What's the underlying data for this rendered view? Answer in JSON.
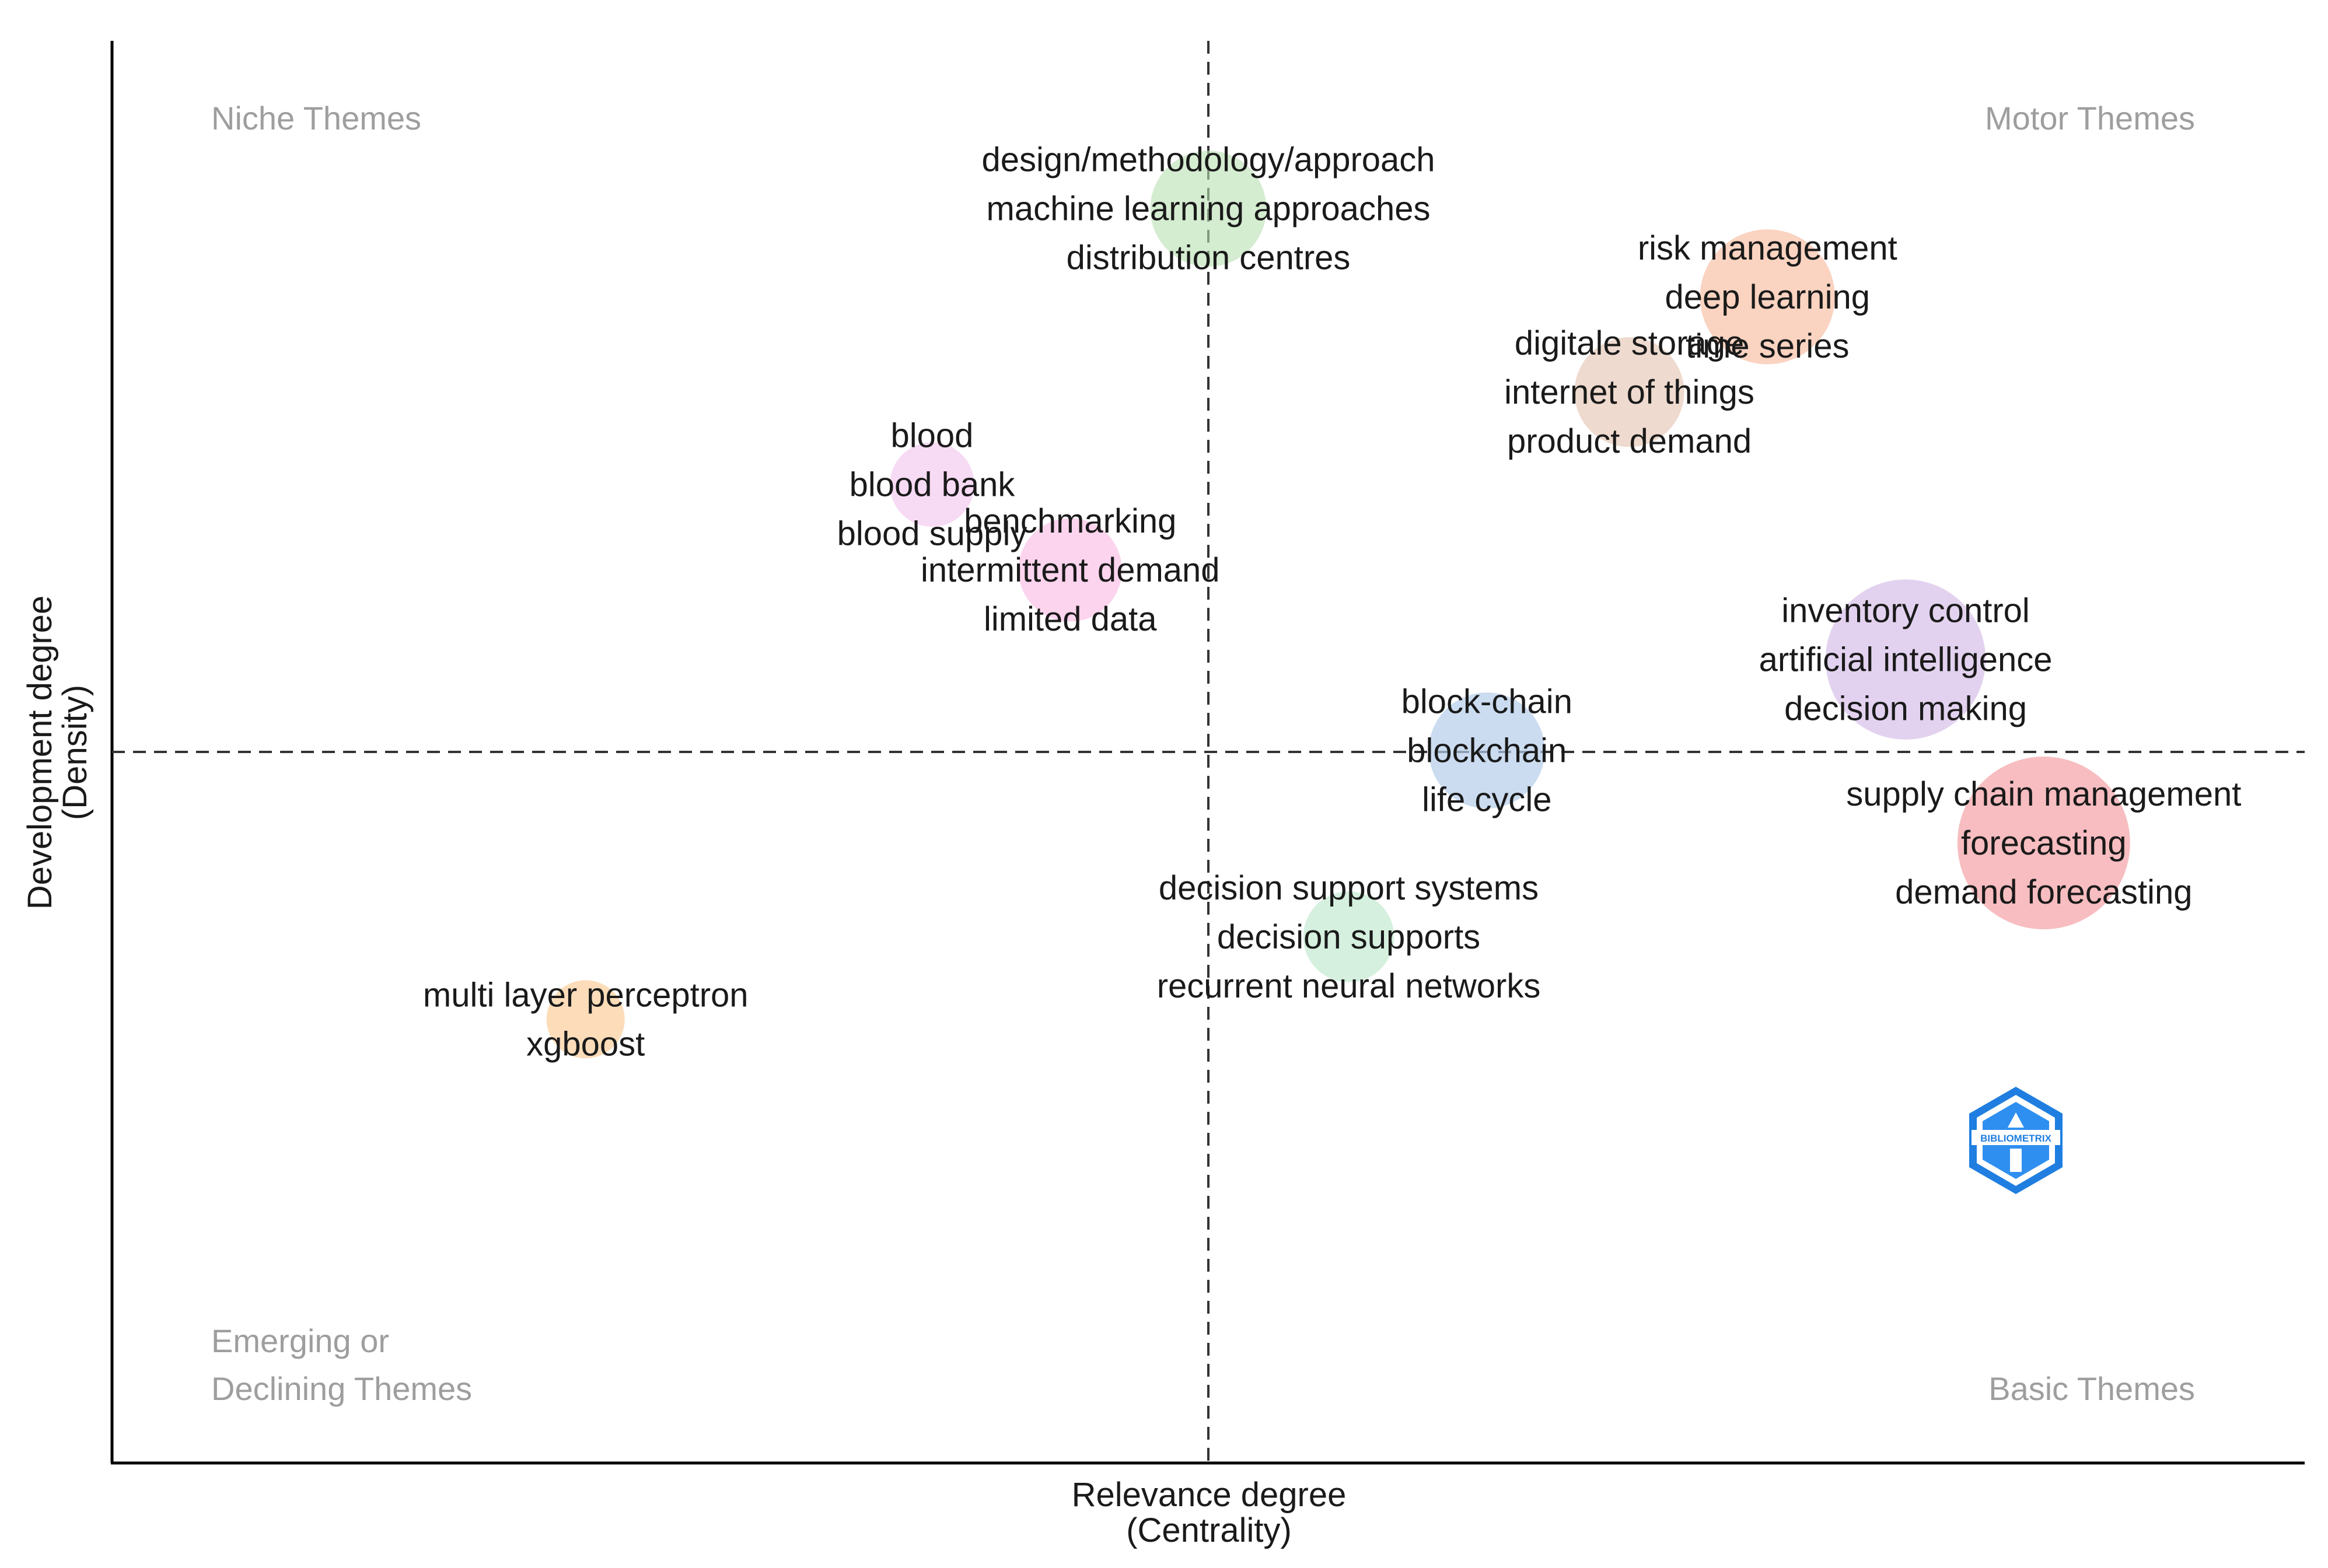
{
  "chart_data": {
    "type": "scatter",
    "title": "",
    "xlabel": "Relevance degree",
    "xlabel_sub": "(Centrality)",
    "ylabel": "Development degree",
    "ylabel_sub": "(Density)",
    "xlim": [
      0,
      1
    ],
    "ylim": [
      0,
      1
    ],
    "x_threshold": 0.5,
    "y_threshold": 0.5,
    "grid": false,
    "quadrant_labels": {
      "top_left": [
        "Niche Themes"
      ],
      "top_right": [
        "Motor Themes"
      ],
      "bottom_left": [
        "Emerging or",
        "Declining Themes"
      ],
      "bottom_right": [
        "Basic Themes"
      ]
    },
    "clusters": [
      {
        "x": 0.5,
        "y": 0.882,
        "size": 0.55,
        "color": "#b8e0b0",
        "opacity": 0.6,
        "labels": [
          "design/methodology/approach",
          "machine learning approaches",
          "distribution centres"
        ]
      },
      {
        "x": 0.755,
        "y": 0.82,
        "size": 0.7,
        "color": "#f8bba0",
        "opacity": 0.65,
        "labels": [
          "risk management",
          "deep learning",
          "time series"
        ]
      },
      {
        "x": 0.692,
        "y": 0.753,
        "size": 0.5,
        "color": "#e3c2ad",
        "opacity": 0.6,
        "labels": [
          "digitale storage",
          "internet of things",
          "product demand"
        ]
      },
      {
        "x": 0.374,
        "y": 0.688,
        "size": 0.3,
        "color": "#f3c6ee",
        "opacity": 0.65,
        "labels": [
          "blood",
          "blood bank",
          "blood supply"
        ]
      },
      {
        "x": 0.437,
        "y": 0.628,
        "size": 0.45,
        "color": "#fbc2e6",
        "opacity": 0.7,
        "labels": [
          "benchmarking",
          "intermittent demand",
          "limited data"
        ]
      },
      {
        "x": 0.818,
        "y": 0.565,
        "size": 0.9,
        "color": "#d5bfe8",
        "opacity": 0.7,
        "labels": [
          "inventory control",
          "artificial intelligence",
          "decision making"
        ]
      },
      {
        "x": 0.627,
        "y": 0.501,
        "size": 0.55,
        "color": "#b5cdea",
        "opacity": 0.7,
        "labels": [
          "block-chain",
          "blockchain",
          "life cycle"
        ]
      },
      {
        "x": 0.881,
        "y": 0.436,
        "size": 1.0,
        "color": "#f3999e",
        "opacity": 0.65,
        "labels": [
          "supply chain management",
          "forecasting",
          "demand forecasting"
        ]
      },
      {
        "x": 0.564,
        "y": 0.37,
        "size": 0.35,
        "color": "#bfe8cd",
        "opacity": 0.65,
        "labels": [
          "decision support systems",
          "decision supports",
          "recurrent neural networks"
        ]
      },
      {
        "x": 0.216,
        "y": 0.312,
        "size": 0.25,
        "color": "#fbd3a8",
        "opacity": 0.8,
        "labels": [
          "multi layer perceptron",
          "xgboost"
        ]
      }
    ],
    "logo": {
      "name": "bibliometrix-logo",
      "text": "BIBLIOMETRIX",
      "color": "#1f7ee0"
    }
  }
}
